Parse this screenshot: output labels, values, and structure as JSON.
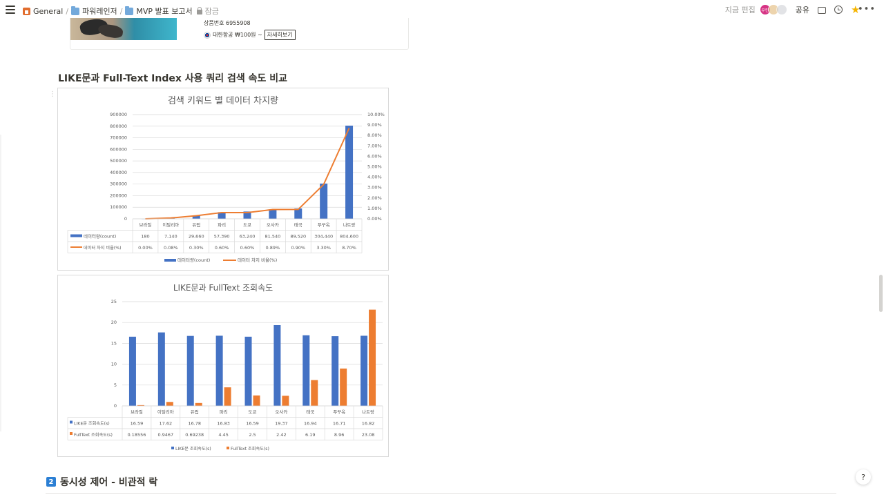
{
  "breadcrumb": {
    "items": [
      "General",
      "파워레인저",
      "MVP 발표 보고서"
    ],
    "locked": "잠금"
  },
  "toolbar": {
    "editing_label": "지금 편집",
    "avatar_initials": "우린",
    "share_label": "공유",
    "icons": [
      "comment-icon",
      "clock-icon",
      "star-icon",
      "more-icon"
    ],
    "star_color": "#f5b400"
  },
  "bookmark": {
    "product_number": "상품번호 6955908",
    "airline_price": "대한항공 ₩100원 ~",
    "detail_button": "자세히보기"
  },
  "section_title": "LIKE문과 Full-Text Index 사용 쿼리 검색 속도 비교",
  "next_section": {
    "number": "2",
    "title": "동시성 제어 - 비관적 락"
  },
  "help_label": "?",
  "colors": {
    "blue": "#4472c4",
    "orange": "#ed7d31",
    "accent": "#2b7fd4"
  },
  "chart_data": [
    {
      "type": "bar",
      "title": "검색 키워드 별 데이터 차지량",
      "categories": [
        "브라질",
        "이탈리아",
        "유럽",
        "파리",
        "도쿄",
        "오사카",
        "태국",
        "푸꾸옥",
        "나트랑"
      ],
      "series": [
        {
          "name": "데이터량(count)",
          "type": "bar",
          "axis": "left",
          "values": [
            180,
            7140,
            29660,
            57390,
            63240,
            81540,
            89520,
            304440,
            804600
          ],
          "labels": [
            "180",
            "7,140",
            "29,660",
            "57,390",
            "63,240",
            "81,540",
            "89,520",
            "304,440",
            "804,600"
          ]
        },
        {
          "name": "데이터 차지 비율(%)",
          "type": "line",
          "axis": "right",
          "values": [
            0.0,
            0.08,
            0.3,
            0.6,
            0.6,
            0.89,
            0.9,
            3.3,
            8.7
          ],
          "labels": [
            "0.00%",
            "0.08%",
            "0.30%",
            "0.60%",
            "0.60%",
            "0.89%",
            "0.90%",
            "3.30%",
            "8.70%"
          ]
        }
      ],
      "ylim": [
        0,
        900000
      ],
      "y_ticks": [
        "0",
        "100000",
        "200000",
        "300000",
        "400000",
        "500000",
        "600000",
        "700000",
        "800000",
        "900000"
      ],
      "y2lim": [
        0,
        10
      ],
      "y2_ticks": [
        "0.00%",
        "1.00%",
        "2.00%",
        "3.00%",
        "4.00%",
        "5.00%",
        "6.00%",
        "7.00%",
        "8.00%",
        "9.00%",
        "10.00%"
      ],
      "legend": "bottom",
      "grid": true,
      "data_table": true
    },
    {
      "type": "bar",
      "title": "LIKE문과 FullText 조회속도",
      "categories": [
        "브라질",
        "이탈리아",
        "유럽",
        "파리",
        "도쿄",
        "오사카",
        "태국",
        "푸꾸옥",
        "나트랑"
      ],
      "series": [
        {
          "name": "LIKE문 조회속도(s)",
          "values": [
            16.59,
            17.62,
            16.78,
            16.83,
            16.59,
            19.37,
            16.94,
            16.71,
            16.82
          ],
          "labels": [
            "16.59",
            "17.62",
            "16.78",
            "16.83",
            "16.59",
            "19.37",
            "16.94",
            "16.71",
            "16.82"
          ]
        },
        {
          "name": "FullText 조회속도(s)",
          "values": [
            0.18556,
            0.9467,
            0.69238,
            4.45,
            2.5,
            2.42,
            6.19,
            8.96,
            23.08
          ],
          "labels": [
            "0.18556",
            "0.9467",
            "0.69238",
            "4.45",
            "2.5",
            "2.42",
            "6.19",
            "8.96",
            "23.08"
          ]
        }
      ],
      "ylim": [
        0,
        25
      ],
      "y_ticks": [
        "0",
        "5",
        "10",
        "15",
        "20",
        "25"
      ],
      "legend": "bottom",
      "grid": true,
      "data_table": true
    }
  ]
}
